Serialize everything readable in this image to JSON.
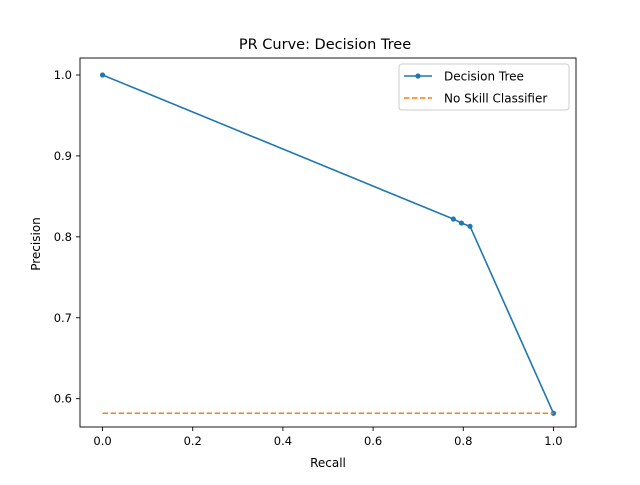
{
  "chart_data": {
    "type": "line",
    "title": "PR Curve: Decision Tree",
    "xlabel": "Recall",
    "ylabel": "Precision",
    "xlim": [
      -0.05,
      1.05
    ],
    "ylim": [
      0.565,
      1.021
    ],
    "xticks": [
      0.0,
      0.2,
      0.4,
      0.6,
      0.8,
      1.0
    ],
    "xtick_labels": [
      "0.0",
      "0.2",
      "0.4",
      "0.6",
      "0.8",
      "1.0"
    ],
    "yticks": [
      0.6,
      0.7,
      0.8,
      0.9,
      1.0
    ],
    "ytick_labels": [
      "0.6",
      "0.7",
      "0.8",
      "0.9",
      "1.0"
    ],
    "grid": false,
    "legend_position": "top-right",
    "series": [
      {
        "name": "Decision Tree",
        "color": "#1f77b4",
        "style": "solid",
        "marker": "dot",
        "points": [
          {
            "x": 0.0,
            "y": 1.0
          },
          {
            "x": 0.778,
            "y": 0.822
          },
          {
            "x": 0.796,
            "y": 0.817
          },
          {
            "x": 0.815,
            "y": 0.813
          },
          {
            "x": 1.0,
            "y": 0.582
          }
        ]
      },
      {
        "name": "No Skill Classifier",
        "color": "#ff7f0e",
        "style": "dashed",
        "marker": "none",
        "points": [
          {
            "x": 0.0,
            "y": 0.582
          },
          {
            "x": 1.0,
            "y": 0.582
          }
        ]
      }
    ]
  }
}
